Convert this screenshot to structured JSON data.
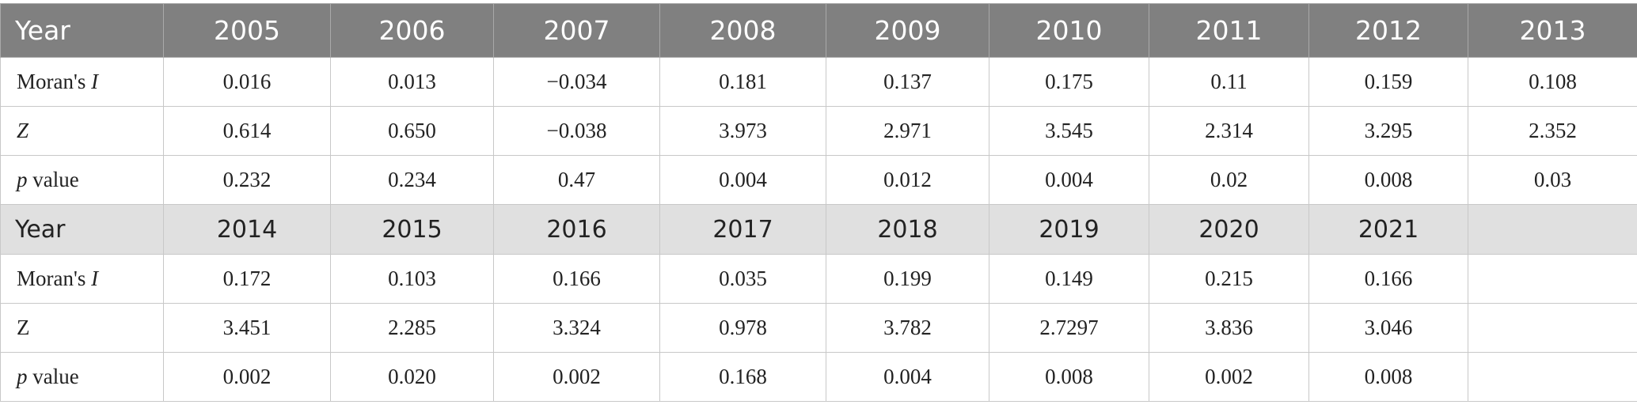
{
  "table": {
    "block1": {
      "year_label": "Year",
      "years": [
        "2005",
        "2006",
        "2007",
        "2008",
        "2009",
        "2010",
        "2011",
        "2012",
        "2013"
      ],
      "rows": [
        {
          "label": "Moran's ",
          "label_italic": "I",
          "values": [
            "0.016",
            "0.013",
            "−0.034",
            "0.181",
            "0.137",
            "0.175",
            "0.11",
            "0.159",
            "0.108"
          ]
        },
        {
          "label": "",
          "label_italic": "Z",
          "values": [
            "0.614",
            "0.650",
            "−0.038",
            "3.973",
            "2.971",
            "3.545",
            "2.314",
            "3.295",
            "2.352"
          ]
        },
        {
          "label": " value",
          "label_italic": "p",
          "values": [
            "0.232",
            "0.234",
            "0.47",
            "0.004",
            "0.012",
            "0.004",
            "0.02",
            "0.008",
            "0.03"
          ]
        }
      ]
    },
    "block2": {
      "year_label": "Year",
      "years": [
        "2014",
        "2015",
        "2016",
        "2017",
        "2018",
        "2019",
        "2020",
        "2021",
        ""
      ],
      "rows": [
        {
          "label": "Moran's ",
          "label_italic": "I",
          "values": [
            "0.172",
            "0.103",
            "0.166",
            "0.035",
            "0.199",
            "0.149",
            "0.215",
            "0.166",
            ""
          ]
        },
        {
          "label": "Z",
          "label_italic": "",
          "values": [
            "3.451",
            "2.285",
            "3.324",
            "0.978",
            "3.782",
            "2.7297",
            "3.836",
            "3.046",
            ""
          ]
        },
        {
          "label": " value",
          "label_italic": "p",
          "values": [
            "0.002",
            "0.020",
            "0.002",
            "0.168",
            "0.004",
            "0.008",
            "0.002",
            "0.008",
            ""
          ]
        }
      ]
    }
  }
}
